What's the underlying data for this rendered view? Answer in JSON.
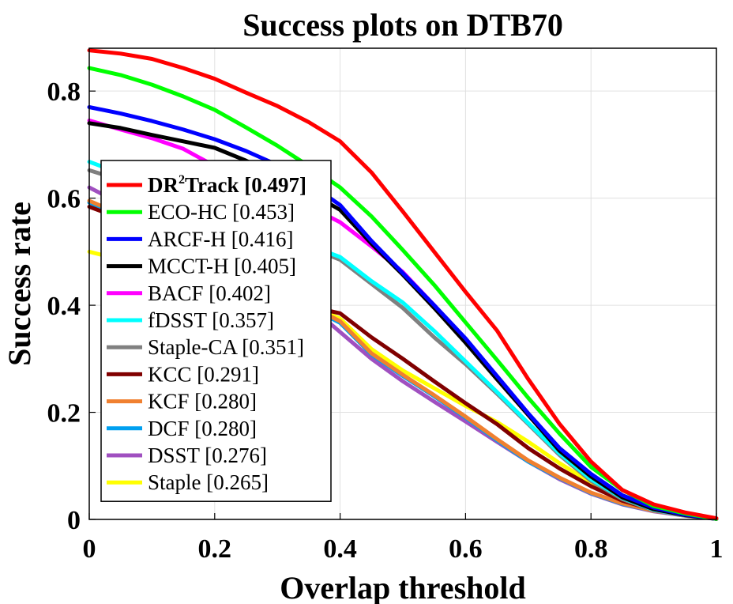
{
  "chart_data": {
    "type": "line",
    "title": "Success plots on DTB70",
    "xlabel": "Overlap threshold",
    "ylabel": "Success rate",
    "xlim": [
      0,
      1
    ],
    "ylim": [
      0,
      0.88
    ],
    "x_ticks": [
      "0",
      "0.2",
      "0.4",
      "0.6",
      "0.8",
      "1"
    ],
    "y_ticks": [
      "0",
      "0.2",
      "0.4",
      "0.6",
      "0.8"
    ],
    "grid": true,
    "legend_position": "left",
    "x": [
      0,
      0.05,
      0.1,
      0.15,
      0.2,
      0.25,
      0.3,
      0.35,
      0.4,
      0.45,
      0.5,
      0.55,
      0.6,
      0.65,
      0.7,
      0.75,
      0.8,
      0.85,
      0.9,
      0.95,
      1.0
    ],
    "series": [
      {
        "name": "DR²Track",
        "legend_main": "DR",
        "legend_sup": "2",
        "legend_rest": "Track [0.497]",
        "bold": true,
        "color": "#ff0000",
        "values": [
          0.876,
          0.87,
          0.86,
          0.843,
          0.823,
          0.797,
          0.772,
          0.742,
          0.706,
          0.648,
          0.575,
          0.5,
          0.425,
          0.353,
          0.262,
          0.178,
          0.108,
          0.055,
          0.028,
          0.013,
          0.002
        ]
      },
      {
        "name": "ECO-HC",
        "legend": "ECO-HC [0.453]",
        "color": "#00ff00",
        "values": [
          0.843,
          0.83,
          0.812,
          0.79,
          0.765,
          0.732,
          0.698,
          0.66,
          0.62,
          0.566,
          0.503,
          0.438,
          0.368,
          0.298,
          0.227,
          0.16,
          0.098,
          0.055,
          0.025,
          0.011,
          0.001
        ]
      },
      {
        "name": "ARCF-H",
        "legend": "ARCF-H [0.416]",
        "color": "#0000ff",
        "values": [
          0.77,
          0.758,
          0.744,
          0.728,
          0.71,
          0.688,
          0.662,
          0.628,
          0.587,
          0.52,
          0.46,
          0.4,
          0.338,
          0.268,
          0.198,
          0.133,
          0.085,
          0.045,
          0.022,
          0.009,
          0.001
        ]
      },
      {
        "name": "MCCT-H",
        "legend": "MCCT-H [0.405]",
        "color": "#000000",
        "values": [
          0.74,
          0.731,
          0.718,
          0.706,
          0.694,
          0.67,
          0.642,
          0.612,
          0.578,
          0.515,
          0.457,
          0.395,
          0.33,
          0.262,
          0.195,
          0.128,
          0.08,
          0.041,
          0.019,
          0.008,
          0.001
        ]
      },
      {
        "name": "BACF",
        "legend": "BACF [0.402]",
        "color": "#ff00ff",
        "values": [
          0.745,
          0.728,
          0.712,
          0.692,
          0.66,
          0.632,
          0.61,
          0.585,
          0.555,
          0.51,
          0.462,
          0.4,
          0.335,
          0.265,
          0.195,
          0.13,
          0.082,
          0.042,
          0.019,
          0.008,
          0.001
        ]
      },
      {
        "name": "fDSST",
        "legend": "fDSST [0.357]",
        "color": "#00ffff",
        "values": [
          0.668,
          0.646,
          0.622,
          0.6,
          0.578,
          0.556,
          0.532,
          0.512,
          0.49,
          0.445,
          0.405,
          0.352,
          0.295,
          0.238,
          0.18,
          0.123,
          0.075,
          0.04,
          0.018,
          0.008,
          0.001
        ]
      },
      {
        "name": "Staple-CA",
        "legend": "Staple-CA [0.351]",
        "color": "#808080",
        "values": [
          0.652,
          0.634,
          0.614,
          0.592,
          0.57,
          0.55,
          0.528,
          0.508,
          0.485,
          0.44,
          0.395,
          0.34,
          0.29,
          0.235,
          0.178,
          0.12,
          0.072,
          0.038,
          0.017,
          0.007,
          0.001
        ]
      },
      {
        "name": "KCC",
        "legend": "KCC [0.291]",
        "color": "#800000",
        "values": [
          0.584,
          0.562,
          0.538,
          0.514,
          0.488,
          0.458,
          0.428,
          0.398,
          0.385,
          0.34,
          0.3,
          0.258,
          0.217,
          0.178,
          0.133,
          0.095,
          0.062,
          0.035,
          0.018,
          0.008,
          0.001
        ]
      },
      {
        "name": "KCF",
        "legend": "KCF [0.280]",
        "color": "#f08030",
        "values": [
          0.595,
          0.57,
          0.545,
          0.518,
          0.49,
          0.46,
          0.428,
          0.4,
          0.37,
          0.31,
          0.27,
          0.232,
          0.192,
          0.15,
          0.11,
          0.078,
          0.05,
          0.03,
          0.016,
          0.008,
          0.001
        ]
      },
      {
        "name": "DCF",
        "legend": "DCF [0.280]",
        "color": "#00a0f0",
        "values": [
          0.592,
          0.568,
          0.542,
          0.515,
          0.487,
          0.457,
          0.425,
          0.397,
          0.367,
          0.308,
          0.268,
          0.23,
          0.19,
          0.148,
          0.108,
          0.077,
          0.049,
          0.029,
          0.016,
          0.008,
          0.001
        ]
      },
      {
        "name": "DSST",
        "legend": "DSST [0.276]",
        "color": "#a050c0",
        "values": [
          0.62,
          0.59,
          0.56,
          0.53,
          0.5,
          0.468,
          0.438,
          0.4,
          0.35,
          0.3,
          0.258,
          0.22,
          0.183,
          0.145,
          0.108,
          0.075,
          0.048,
          0.028,
          0.015,
          0.007,
          0.001
        ]
      },
      {
        "name": "Staple",
        "legend": "Staple [0.265]",
        "color": "#ffff00",
        "values": [
          0.5,
          0.485,
          0.468,
          0.452,
          0.44,
          0.428,
          0.416,
          0.4,
          0.375,
          0.318,
          0.278,
          0.245,
          0.212,
          0.182,
          0.145,
          0.105,
          0.068,
          0.04,
          0.019,
          0.008,
          0.001
        ]
      }
    ]
  }
}
